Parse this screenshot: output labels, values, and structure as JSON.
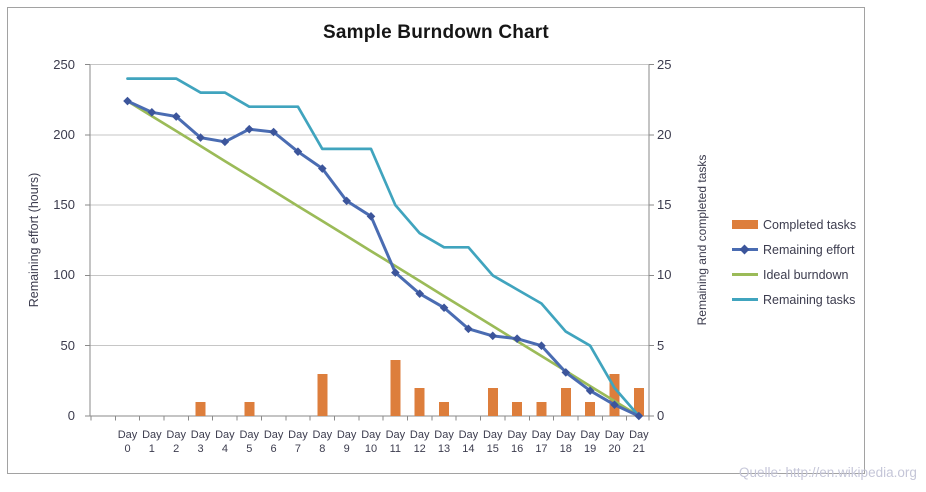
{
  "source_note": "Quelle: http://en.wikipedia.org",
  "colors": {
    "completed_tasks": "#dd7e3c",
    "remaining_effort": "#4a6cb2",
    "remaining_effort_marker": "#3c559b",
    "ideal_burndown": "#9bbb58",
    "remaining_tasks": "#40a4be",
    "gridline": "#c6c6c6",
    "axis_line": "#8a8a8a",
    "axis_text": "#3c3c4e",
    "frame_border": "#a2a2a2",
    "source_text": "#c5c6d8"
  },
  "chart_data": {
    "type": "combo",
    "title": "Sample Burndown Chart",
    "grid": true,
    "legend_position": "right",
    "categories": [
      "Day 0",
      "Day 1",
      "Day 2",
      "Day 3",
      "Day 4",
      "Day 5",
      "Day 6",
      "Day 7",
      "Day 8",
      "Day 9",
      "Day 10",
      "Day 11",
      "Day 12",
      "Day 13",
      "Day 14",
      "Day 15",
      "Day 16",
      "Day 17",
      "Day 18",
      "Day 19",
      "Day 20",
      "Day 21"
    ],
    "left_axis": {
      "label": "Remaining effort (hours)",
      "min": 0,
      "max": 250,
      "ticks": [
        250,
        200,
        150,
        100,
        50,
        0
      ]
    },
    "right_axis": {
      "label": "Remaining and  completed tasks",
      "min": 0,
      "max": 25,
      "ticks": [
        25,
        20,
        15,
        10,
        5,
        0
      ]
    },
    "series": [
      {
        "name": "Completed tasks",
        "type": "bar",
        "axis": "right",
        "color": "#dd7e3c",
        "values": [
          0,
          0,
          0,
          1,
          0,
          1,
          0,
          0,
          3,
          0,
          0,
          4,
          2,
          1,
          0,
          2,
          1,
          1,
          2,
          1,
          3,
          2
        ]
      },
      {
        "name": "Remaining effort",
        "type": "line",
        "marker": "diamond",
        "axis": "left",
        "color": "#4a6cb2",
        "marker_color": "#3c559b",
        "values": [
          224,
          216,
          213,
          198,
          195,
          204,
          202,
          188,
          176,
          153,
          142,
          102,
          87,
          77,
          62,
          57,
          55,
          50,
          31,
          18,
          8,
          0
        ]
      },
      {
        "name": "Ideal burndown",
        "type": "line",
        "axis": "left",
        "color": "#9bbb58",
        "values": [
          224,
          213.3,
          202.7,
          192,
          181.3,
          170.7,
          160,
          149.3,
          138.7,
          128,
          117.3,
          106.7,
          96,
          85.3,
          74.7,
          64,
          53.3,
          42.7,
          32,
          21.3,
          10.7,
          0
        ]
      },
      {
        "name": "Remaining tasks",
        "type": "line",
        "axis": "right",
        "color": "#40a4be",
        "values": [
          24,
          24,
          24,
          23,
          23,
          22,
          22,
          22,
          19,
          19,
          19,
          15,
          13,
          12,
          12,
          10,
          9,
          8,
          6,
          5,
          2,
          0
        ]
      }
    ]
  }
}
